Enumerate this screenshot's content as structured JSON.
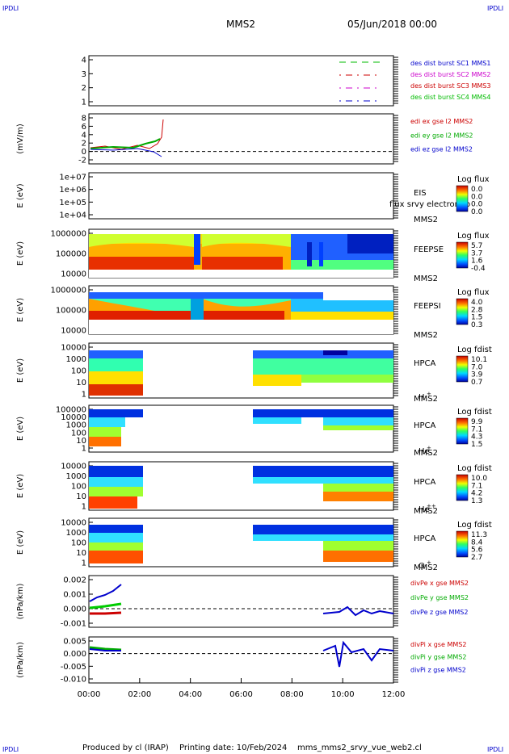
{
  "header": {
    "corner_label": "IPDLI",
    "title": "MMS2",
    "datetime": "05/Jun/2018 00:00"
  },
  "footer": {
    "produced": "Produced by cl (IRAP)",
    "printing": "Printing date: 10/Feb/2024",
    "file": "mms_mms2_srvy_vue_web2.cl"
  },
  "x_ticks": [
    "00:00",
    "02:00",
    "04:00",
    "06:00",
    "08:00",
    "10:00",
    "12:00"
  ],
  "chart_data": [
    {
      "type": "line",
      "y_ticks": [
        "1",
        "2",
        "3",
        "4"
      ],
      "legend": [
        {
          "label": "des dist burst SC1 MMS1",
          "color": "#0000cc"
        },
        {
          "label": "des dist burst SC2 MMS2",
          "color": "#cc00cc"
        },
        {
          "label": "des dist burst SC3 MMS3",
          "color": "#cc0000"
        },
        {
          "label": "des dist burst SC4 MMS4",
          "color": "#00bb00"
        }
      ]
    },
    {
      "type": "line",
      "ylabel": "(mV/m)",
      "y_ticks": [
        "8",
        "6",
        "4",
        "2",
        "0",
        "-2"
      ],
      "legend": [
        {
          "label": "edi ex gse l2 MMS2",
          "color": "#cc0000"
        },
        {
          "label": "edi ey gse l2 MMS2",
          "color": "#00aa00"
        },
        {
          "label": "edi ez gse l2 MMS2",
          "color": "#0000cc"
        }
      ]
    },
    {
      "type": "heatmap",
      "ylabel": "E (eV)",
      "y_ticks": [
        "1e+07",
        "1e+06",
        "1e+05",
        "1e+04"
      ],
      "instrument": "EIS",
      "overlay": "flux srvy electron to",
      "sc": "MMS2",
      "cbar_title": "Log flux",
      "cbar_ticks": [
        "0.0",
        "0.0",
        "0.0",
        "0.0"
      ]
    },
    {
      "type": "heatmap",
      "ylabel": "E (eV)",
      "y_ticks": [
        "1000000",
        "100000",
        "10000"
      ],
      "instrument": "FEEPSE",
      "sc": "MMS2",
      "cbar_title": "Log flux",
      "cbar_ticks": [
        "5.7",
        "3.7",
        "1.6",
        "-0.4"
      ]
    },
    {
      "type": "heatmap",
      "ylabel": "E (eV)",
      "y_ticks": [
        "1000000",
        "100000",
        "10000"
      ],
      "instrument": "FEEPSI",
      "sc": "MMS2",
      "cbar_title": "Log flux",
      "cbar_ticks": [
        "4.0",
        "2.8",
        "1.5",
        "0.3"
      ]
    },
    {
      "type": "heatmap",
      "ylabel": "E (eV)",
      "y_ticks": [
        "10000",
        "1000",
        "100",
        "10",
        "1"
      ],
      "instrument": "HPCA",
      "sc": "MMS2",
      "species": "H",
      "species_sup": "+",
      "cbar_title": "Log fdist",
      "cbar_ticks": [
        "10.1",
        "7.0",
        "3.9",
        "0.7"
      ]
    },
    {
      "type": "heatmap",
      "ylabel": "E (eV)",
      "y_ticks": [
        "100000",
        "10000",
        "1000",
        "100",
        "10",
        "1"
      ],
      "instrument": "HPCA",
      "sc": "MMS2",
      "species": "He",
      "species_sup": "+",
      "cbar_title": "Log fdist",
      "cbar_ticks": [
        "9.9",
        "7.1",
        "4.3",
        "1.5"
      ]
    },
    {
      "type": "heatmap",
      "ylabel": "E (eV)",
      "y_ticks": [
        "10000",
        "1000",
        "100",
        "10",
        "1"
      ],
      "instrument": "HPCA",
      "sc": "MMS2",
      "species": "He",
      "species_sup": "++",
      "cbar_title": "Log fdist",
      "cbar_ticks": [
        "10.0",
        "7.1",
        "4.2",
        "1.3"
      ]
    },
    {
      "type": "heatmap",
      "ylabel": "E (eV)",
      "y_ticks": [
        "10000",
        "1000",
        "100",
        "10",
        "1"
      ],
      "instrument": "HPCA",
      "sc": "MMS2",
      "species": "O",
      "species_sup": "+",
      "cbar_title": "Log fdist",
      "cbar_ticks": [
        "11.3",
        "8.4",
        "5.6",
        "2.7"
      ]
    },
    {
      "type": "line",
      "ylabel": "(nPa/km)",
      "y_ticks": [
        "0.002",
        "0.001",
        "0.000",
        "-0.001"
      ],
      "legend": [
        {
          "label": "divPe x gse MMS2",
          "color": "#cc0000"
        },
        {
          "label": "divPe y gse MMS2",
          "color": "#00aa00"
        },
        {
          "label": "divPe z gse MMS2",
          "color": "#0000cc"
        }
      ]
    },
    {
      "type": "line",
      "ylabel": "(nPa/km)",
      "y_ticks": [
        "0.005",
        "0.000",
        "-0.005",
        "-0.010"
      ],
      "legend": [
        {
          "label": "divPi x gse MMS2",
          "color": "#cc0000"
        },
        {
          "label": "divPi y gse MMS2",
          "color": "#00aa00"
        },
        {
          "label": "divPi z gse MMS2",
          "color": "#0000cc"
        }
      ]
    }
  ]
}
